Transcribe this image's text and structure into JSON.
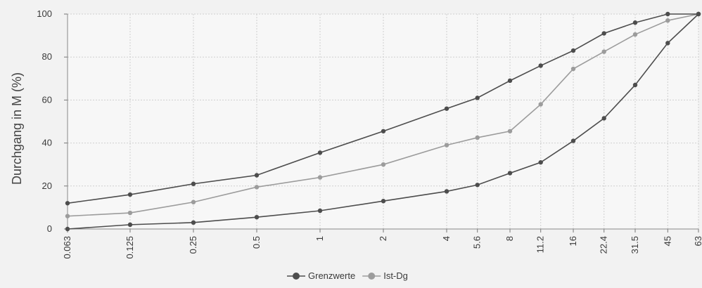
{
  "chart_data": {
    "type": "line",
    "xscale": "log",
    "x_ticks": [
      "0.063",
      "0.125",
      "0.25",
      "0.5",
      "1",
      "2",
      "4",
      "5.6",
      "8",
      "11.2",
      "16",
      "22.4",
      "31.5",
      "45",
      "63"
    ],
    "ylabel": "Durchgang in M (%)",
    "ylim": [
      0,
      100
    ],
    "y_ticks": [
      0,
      20,
      40,
      60,
      80,
      100
    ],
    "grid": true,
    "legend_position": "bottom-center",
    "series": [
      {
        "name": "Grenzwerte",
        "color": "#4d4d4d",
        "points": [
          {
            "x": 0.063,
            "y": 12
          },
          {
            "x": 0.125,
            "y": 16
          },
          {
            "x": 0.25,
            "y": 21
          },
          {
            "x": 0.5,
            "y": 25
          },
          {
            "x": 1,
            "y": 35.5
          },
          {
            "x": 2,
            "y": 45.5
          },
          {
            "x": 4,
            "y": 56
          },
          {
            "x": 5.6,
            "y": 61
          },
          {
            "x": 8,
            "y": 69
          },
          {
            "x": 11.2,
            "y": 76
          },
          {
            "x": 16,
            "y": 83
          },
          {
            "x": 22.4,
            "y": 91
          },
          {
            "x": 31.5,
            "y": 96
          },
          {
            "x": 45,
            "y": 100
          },
          {
            "x": 63,
            "y": 100
          }
        ]
      },
      {
        "name": "Grenzwerte",
        "color": "#4d4d4d",
        "legend": false,
        "points": [
          {
            "x": 0.063,
            "y": 0
          },
          {
            "x": 0.125,
            "y": 2
          },
          {
            "x": 0.25,
            "y": 3
          },
          {
            "x": 0.5,
            "y": 5.5
          },
          {
            "x": 1,
            "y": 8.5
          },
          {
            "x": 2,
            "y": 13
          },
          {
            "x": 4,
            "y": 17.5
          },
          {
            "x": 5.6,
            "y": 20.5
          },
          {
            "x": 8,
            "y": 26
          },
          {
            "x": 11.2,
            "y": 31
          },
          {
            "x": 16,
            "y": 41
          },
          {
            "x": 22.4,
            "y": 51.5
          },
          {
            "x": 31.5,
            "y": 67
          },
          {
            "x": 45,
            "y": 86.5
          },
          {
            "x": 63,
            "y": 100
          }
        ]
      },
      {
        "name": "Ist-Dg",
        "color": "#9c9c9c",
        "points": [
          {
            "x": 0.063,
            "y": 6
          },
          {
            "x": 0.125,
            "y": 7.5
          },
          {
            "x": 0.25,
            "y": 12.5
          },
          {
            "x": 0.5,
            "y": 19.5
          },
          {
            "x": 1,
            "y": 24
          },
          {
            "x": 2,
            "y": 30
          },
          {
            "x": 4,
            "y": 39
          },
          {
            "x": 5.6,
            "y": 42.5
          },
          {
            "x": 8,
            "y": 45.5
          },
          {
            "x": 11.2,
            "y": 58
          },
          {
            "x": 16,
            "y": 74.5
          },
          {
            "x": 22.4,
            "y": 82.5
          },
          {
            "x": 31.5,
            "y": 90.5
          },
          {
            "x": 45,
            "y": 97
          },
          {
            "x": 63,
            "y": 100
          }
        ]
      }
    ],
    "legend": [
      {
        "label": "Grenzwerte",
        "color": "#4d4d4d"
      },
      {
        "label": "Ist-Dg",
        "color": "#9c9c9c"
      }
    ]
  }
}
